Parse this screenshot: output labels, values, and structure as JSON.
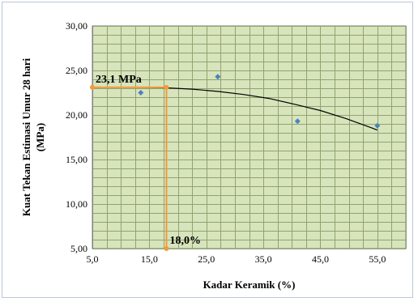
{
  "chart_data": {
    "type": "scatter",
    "xlabel": "Kadar Keramik (%)",
    "ylabel_lines": [
      "Kuat Tekan Estimasi Umur 28 hari",
      "(MPa)"
    ],
    "xlim": [
      5.0,
      60.0
    ],
    "ylim": [
      5.0,
      30.0
    ],
    "x_ticks": [
      5.0,
      15.0,
      25.0,
      35.0,
      45.0,
      55.0
    ],
    "x_tick_labels": [
      "5,0",
      "15,0",
      "25,0",
      "35,0",
      "45,0",
      "55,0"
    ],
    "y_ticks": [
      5.0,
      10.0,
      15.0,
      20.0,
      25.0,
      30.0
    ],
    "y_tick_labels": [
      "5,00",
      "10,00",
      "15,00",
      "20,00",
      "25,00",
      "30,00"
    ],
    "minor_x_step": 2.5,
    "minor_y_step": 1.0,
    "grid": true,
    "plot_background": "#d8e4bc",
    "grid_color": "#8fa470",
    "series": [
      {
        "marker_color": "#4f81bd",
        "x": [
          13.5,
          27.0,
          41.0,
          55.0
        ],
        "y": [
          22.5,
          24.3,
          19.3,
          18.8
        ]
      }
    ],
    "trendline": {
      "color": "#000000",
      "x": [
        13.5,
        18.0,
        22.5,
        27.0,
        31.5,
        36.0,
        40.5,
        45.0,
        49.5,
        54.0,
        55.0
      ],
      "y": [
        23.1,
        23.05,
        22.9,
        22.65,
        22.3,
        21.85,
        21.2,
        20.5,
        19.6,
        18.55,
        18.3
      ]
    },
    "reference": {
      "color": "#f39a3a",
      "x": 18.0,
      "y": 23.1,
      "x_label": "18,0%",
      "y_label": "23,1 MPa"
    }
  }
}
